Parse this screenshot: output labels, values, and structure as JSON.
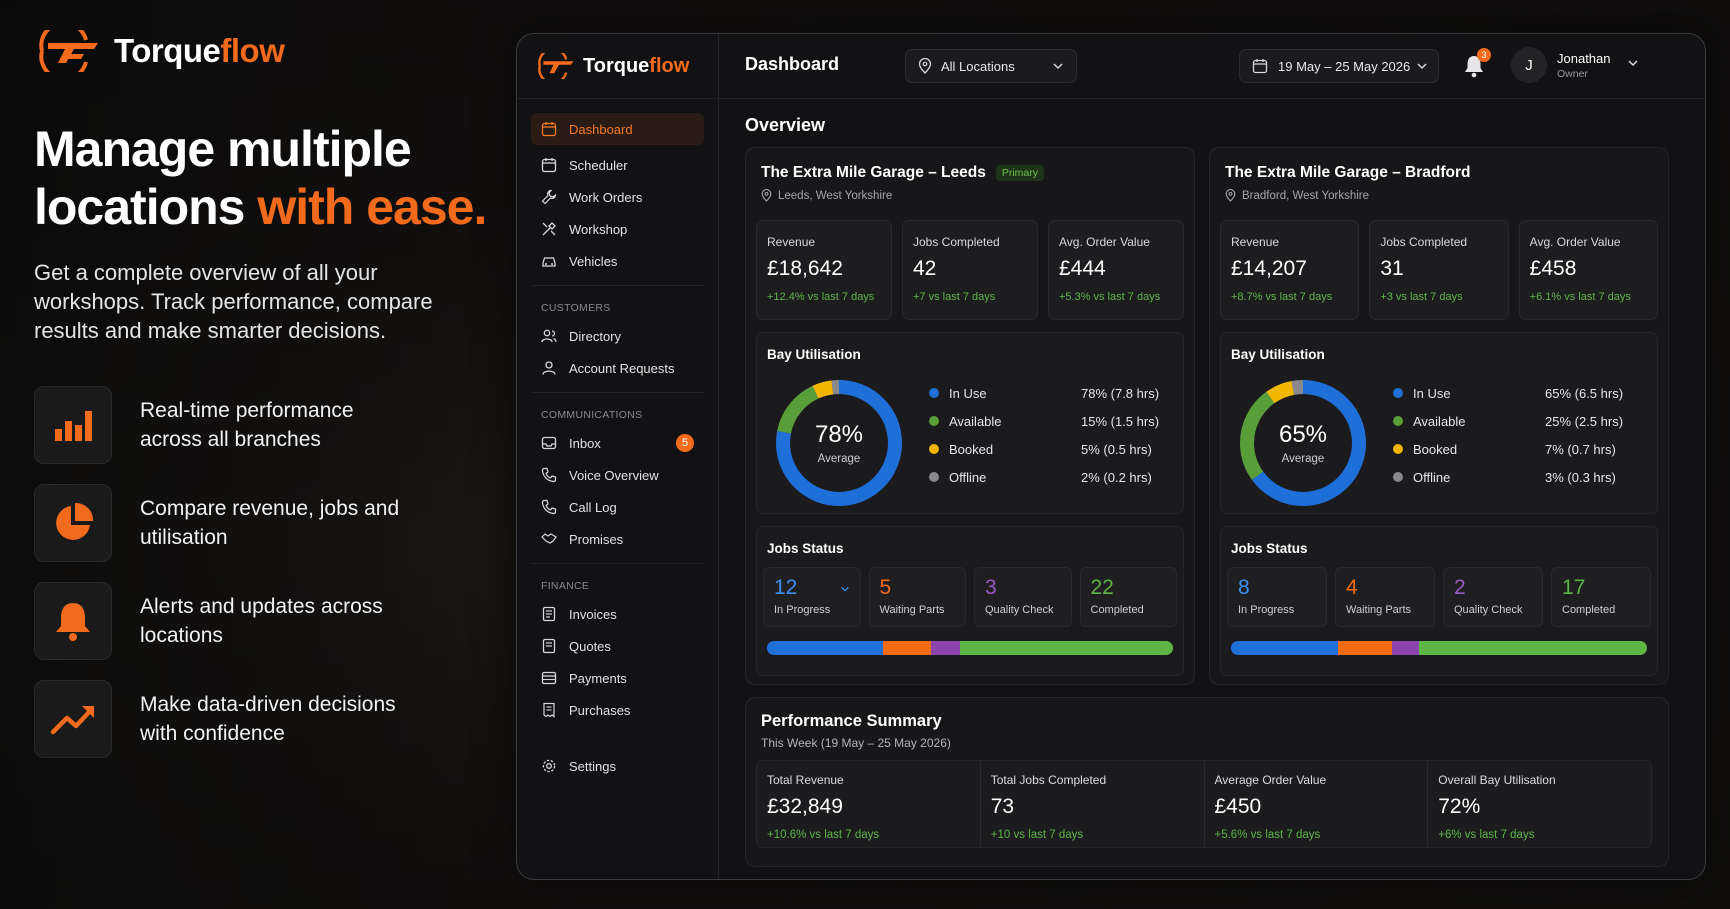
{
  "brand": {
    "name_main": "Torque",
    "name_accent": "flow"
  },
  "hero": {
    "headline_line1": "Manage multiple",
    "headline_line2_plain": "locations ",
    "headline_line2_accent": "with ease.",
    "subtext": "Get a complete overview of all your workshops. Track performance, compare results and make smarter decisions."
  },
  "features": [
    {
      "icon": "bar-chart-icon",
      "text": "Real-time performance across all branches"
    },
    {
      "icon": "pie-chart-icon",
      "text": "Compare revenue, jobs and utilisation"
    },
    {
      "icon": "bell-icon",
      "text": "Alerts and updates across locations"
    },
    {
      "icon": "trend-up-icon",
      "text": "Make data-driven decisions with confidence"
    }
  ],
  "colors": {
    "accent": "#f26a1b",
    "positive": "#5fb548",
    "in_use": "#1f6fd9",
    "available": "#5a9e3a",
    "booked": "#f2b705",
    "offline": "#8a8a8e",
    "waiting": "#ef6b14",
    "quality": "#8e44ad",
    "completed": "#5cb544"
  },
  "sidebar": {
    "items_main": [
      {
        "label": "Dashboard",
        "icon": "calendar-icon",
        "active": true
      },
      {
        "label": "Scheduler",
        "icon": "calendar-icon"
      },
      {
        "label": "Work Orders",
        "icon": "wrench-icon"
      },
      {
        "label": "Workshop",
        "icon": "tools-icon"
      },
      {
        "label": "Vehicles",
        "icon": "car-icon"
      }
    ],
    "section_customers": "CUSTOMERS",
    "items_customers": [
      {
        "label": "Directory",
        "icon": "users-icon"
      },
      {
        "label": "Account Requests",
        "icon": "user-icon"
      }
    ],
    "section_comms": "COMMUNICATIONS",
    "items_comms": [
      {
        "label": "Inbox",
        "icon": "inbox-icon",
        "badge": "5"
      },
      {
        "label": "Voice Overview",
        "icon": "phone-icon"
      },
      {
        "label": "Call Log",
        "icon": "phone-icon"
      },
      {
        "label": "Promises",
        "icon": "handshake-icon"
      }
    ],
    "section_finance": "FINANCE",
    "items_finance": [
      {
        "label": "Invoices",
        "icon": "document-icon"
      },
      {
        "label": "Quotes",
        "icon": "document-icon"
      },
      {
        "label": "Payments",
        "icon": "card-icon"
      },
      {
        "label": "Purchases",
        "icon": "receipt-icon"
      }
    ],
    "settings_label": "Settings"
  },
  "topbar": {
    "title": "Dashboard",
    "location_select": "All Locations",
    "date_range": "19 May – 25 May 2026",
    "notif_count": "3",
    "user_initial": "J",
    "user_name": "Jonathan",
    "user_role": "Owner"
  },
  "overview_title": "Overview",
  "locations": [
    {
      "name": "The Extra Mile Garage – Leeds",
      "tag": "Primary",
      "place": "Leeds, West Yorkshire",
      "metrics": [
        {
          "label": "Revenue",
          "value": "£18,642",
          "delta": "+12.4% vs last 7 days"
        },
        {
          "label": "Jobs Completed",
          "value": "42",
          "delta": "+7 vs last 7 days"
        },
        {
          "label": "Avg. Order Value",
          "value": "£444",
          "delta": "+5.3% vs last 7 days"
        }
      ],
      "bay_title": "Bay Utilisation",
      "bay_pct": "78%",
      "bay_avg_label": "Average",
      "bay_fractions": [
        0.78,
        0.15,
        0.05,
        0.02
      ],
      "bay_legend": [
        {
          "name": "In Use",
          "value": "78% (7.8 hrs)"
        },
        {
          "name": "Available",
          "value": "15% (1.5 hrs)"
        },
        {
          "name": "Booked",
          "value": "5% (0.5 hrs)"
        },
        {
          "name": "Offline",
          "value": "2% (0.2 hrs)"
        }
      ],
      "jobs_title": "Jobs Status",
      "jobs": [
        {
          "value": "12",
          "label": "In Progress"
        },
        {
          "value": "5",
          "label": "Waiting Parts"
        },
        {
          "value": "3",
          "label": "Quality Check"
        },
        {
          "value": "22",
          "label": "Completed"
        }
      ]
    },
    {
      "name": "The Extra Mile Garage – Bradford",
      "tag": "",
      "place": "Bradford, West Yorkshire",
      "metrics": [
        {
          "label": "Revenue",
          "value": "£14,207",
          "delta": "+8.7% vs last 7 days"
        },
        {
          "label": "Jobs Completed",
          "value": "31",
          "delta": "+3 vs last 7 days"
        },
        {
          "label": "Avg. Order Value",
          "value": "£458",
          "delta": "+6.1% vs last 7 days"
        }
      ],
      "bay_title": "Bay Utilisation",
      "bay_pct": "65%",
      "bay_avg_label": "Average",
      "bay_fractions": [
        0.65,
        0.25,
        0.07,
        0.03
      ],
      "bay_legend": [
        {
          "name": "In Use",
          "value": "65% (6.5 hrs)"
        },
        {
          "name": "Available",
          "value": "25% (2.5 hrs)"
        },
        {
          "name": "Booked",
          "value": "7% (0.7 hrs)"
        },
        {
          "name": "Offline",
          "value": "3% (0.3 hrs)"
        }
      ],
      "jobs_title": "Jobs Status",
      "jobs": [
        {
          "value": "8",
          "label": "In Progress"
        },
        {
          "value": "4",
          "label": "Waiting Parts"
        },
        {
          "value": "2",
          "label": "Quality Check"
        },
        {
          "value": "17",
          "label": "Completed"
        }
      ]
    }
  ],
  "performance": {
    "title": "Performance Summary",
    "subtitle": "This Week (19 May – 25 May 2026)",
    "items": [
      {
        "label": "Total Revenue",
        "value": "£32,849",
        "delta": "+10.6% vs last 7 days"
      },
      {
        "label": "Total Jobs Completed",
        "value": "73",
        "delta": "+10 vs last 7 days"
      },
      {
        "label": "Average Order Value",
        "value": "£450",
        "delta": "+5.6% vs last 7 days"
      },
      {
        "label": "Overall Bay Utilisation",
        "value": "72%",
        "delta": "+6% vs last 7 days"
      }
    ]
  }
}
